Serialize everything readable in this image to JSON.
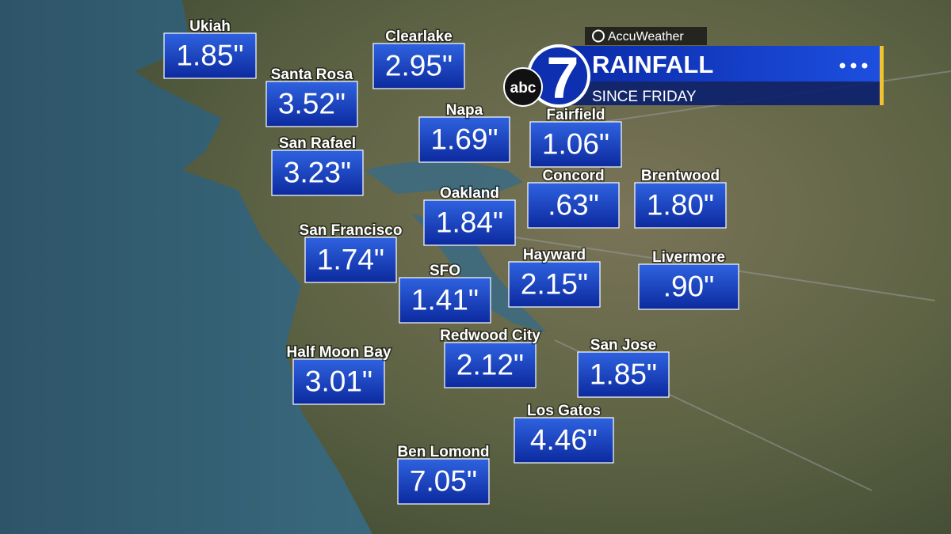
{
  "brand": {
    "provider": "AccuWeather",
    "network": "abc",
    "channel": "7"
  },
  "header": {
    "title": "RAINFALL",
    "subtitle": "SINCE FRIDAY"
  },
  "locations": [
    {
      "name": "Ukiah",
      "amount": "1.85\""
    },
    {
      "name": "Clearlake",
      "amount": "2.95\""
    },
    {
      "name": "Santa Rosa",
      "amount": "3.52\""
    },
    {
      "name": "Napa",
      "amount": "1.69\""
    },
    {
      "name": "Fairfield",
      "amount": "1.06\""
    },
    {
      "name": "San Rafael",
      "amount": "3.23\""
    },
    {
      "name": "Concord",
      "amount": ".63\""
    },
    {
      "name": "Brentwood",
      "amount": "1.80\""
    },
    {
      "name": "Oakland",
      "amount": "1.84\""
    },
    {
      "name": "San Francisco",
      "amount": "1.74\""
    },
    {
      "name": "Hayward",
      "amount": "2.15\""
    },
    {
      "name": "Livermore",
      "amount": ".90\""
    },
    {
      "name": "SFO",
      "amount": "1.41\""
    },
    {
      "name": "Redwood City",
      "amount": "2.12\""
    },
    {
      "name": "San Jose",
      "amount": "1.85\""
    },
    {
      "name": "Half Moon Bay",
      "amount": "3.01\""
    },
    {
      "name": "Los Gatos",
      "amount": "4.46\""
    },
    {
      "name": "Ben Lomond",
      "amount": "7.05\""
    }
  ]
}
